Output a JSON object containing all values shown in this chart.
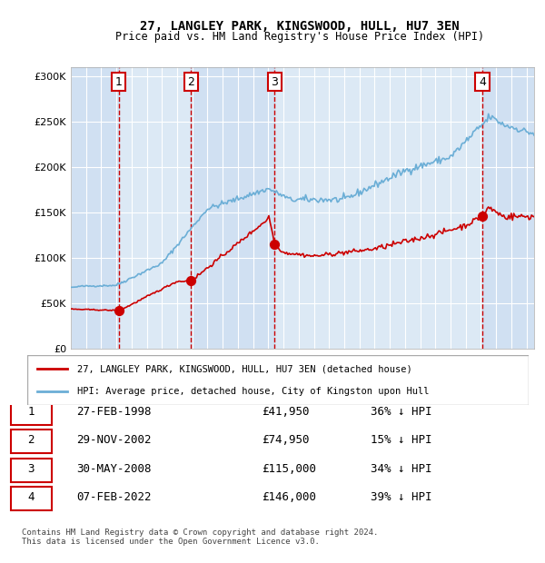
{
  "title": "27, LANGLEY PARK, KINGSWOOD, HULL, HU7 3EN",
  "subtitle": "Price paid vs. HM Land Registry's House Price Index (HPI)",
  "xlim": [
    1995.0,
    2025.5
  ],
  "ylim": [
    0,
    310000
  ],
  "yticks": [
    0,
    50000,
    100000,
    150000,
    200000,
    250000,
    300000
  ],
  "ytick_labels": [
    "£0",
    "£50K",
    "£100K",
    "£150K",
    "£200K",
    "£250K",
    "£300K"
  ],
  "xticks": [
    1995,
    1996,
    1997,
    1998,
    1999,
    2000,
    2001,
    2002,
    2003,
    2004,
    2005,
    2006,
    2007,
    2008,
    2009,
    2010,
    2011,
    2012,
    2013,
    2014,
    2015,
    2016,
    2017,
    2018,
    2019,
    2020,
    2021,
    2022,
    2023,
    2024,
    2025
  ],
  "background_color": "#dce9f5",
  "plot_bg_color": "#dce9f5",
  "grid_color": "#ffffff",
  "hpi_color": "#6baed6",
  "price_color": "#cc0000",
  "sale_marker_color": "#cc0000",
  "sale_points": [
    {
      "num": 1,
      "year": 1998.15,
      "price": 41950,
      "label": "1"
    },
    {
      "num": 2,
      "year": 2002.92,
      "price": 74950,
      "label": "2"
    },
    {
      "num": 3,
      "year": 2008.42,
      "price": 115000,
      "label": "3"
    },
    {
      "num": 4,
      "year": 2022.1,
      "price": 146000,
      "label": "4"
    }
  ],
  "vline_color": "#cc0000",
  "shade_color": "#c8daf0",
  "legend_items": [
    {
      "label": "27, LANGLEY PARK, KINGSWOOD, HULL, HU7 3EN (detached house)",
      "color": "#cc0000"
    },
    {
      "label": "HPI: Average price, detached house, City of Kingston upon Hull",
      "color": "#6baed6"
    }
  ],
  "table_rows": [
    {
      "num": "1",
      "date": "27-FEB-1998",
      "price": "£41,950",
      "hpi": "36% ↓ HPI"
    },
    {
      "num": "2",
      "date": "29-NOV-2002",
      "price": "£74,950",
      "hpi": "15% ↓ HPI"
    },
    {
      "num": "3",
      "date": "30-MAY-2008",
      "price": "£115,000",
      "hpi": "34% ↓ HPI"
    },
    {
      "num": "4",
      "date": "07-FEB-2022",
      "price": "£146,000",
      "hpi": "39% ↓ HPI"
    }
  ],
  "footer": "Contains HM Land Registry data © Crown copyright and database right 2024.\nThis data is licensed under the Open Government Licence v3.0."
}
